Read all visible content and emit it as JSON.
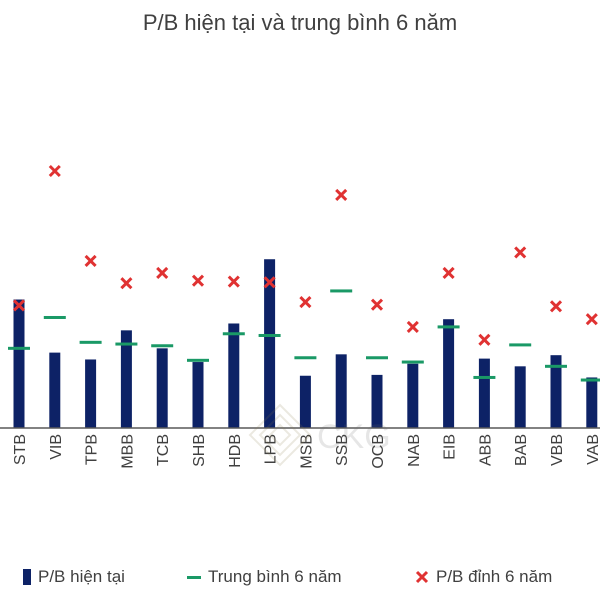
{
  "chart_data": {
    "type": "bar",
    "title": "P/B hiện tại và trung bình 6 năm",
    "categories": [
      "STB",
      "VIB",
      "TPB",
      "MBB",
      "TCB",
      "SHB",
      "HDB",
      "LPB",
      "MSB",
      "SSB",
      "OCB",
      "NAB",
      "EIB",
      "ABB",
      "BAB",
      "VBB",
      "VAB"
    ],
    "ylim": [
      0,
      3.0
    ],
    "grid": false,
    "legend_position": "bottom",
    "series": [
      {
        "name": "P/B hiện tại",
        "type": "bar",
        "color": "#0d2266",
        "values": [
          1.5,
          0.88,
          0.8,
          1.14,
          0.93,
          0.77,
          1.22,
          1.97,
          0.61,
          0.86,
          0.62,
          0.75,
          1.27,
          0.81,
          0.72,
          0.85,
          0.59
        ]
      },
      {
        "name": "Trung bình 6 năm",
        "type": "marker-dash",
        "color": "#1a9966",
        "values": [
          0.93,
          1.29,
          1.0,
          0.98,
          0.96,
          0.79,
          1.1,
          1.08,
          0.82,
          1.6,
          0.82,
          0.77,
          1.18,
          0.59,
          0.97,
          0.72,
          0.56
        ]
      },
      {
        "name": "P/B đỉnh 6 năm",
        "type": "marker-x",
        "color": "#e03232",
        "values": [
          1.43,
          3.0,
          1.95,
          1.69,
          1.81,
          1.72,
          1.71,
          1.7,
          1.47,
          2.72,
          1.44,
          1.18,
          1.81,
          1.03,
          2.05,
          1.42,
          1.27
        ]
      }
    ]
  },
  "watermark": {
    "text": "CKG"
  }
}
